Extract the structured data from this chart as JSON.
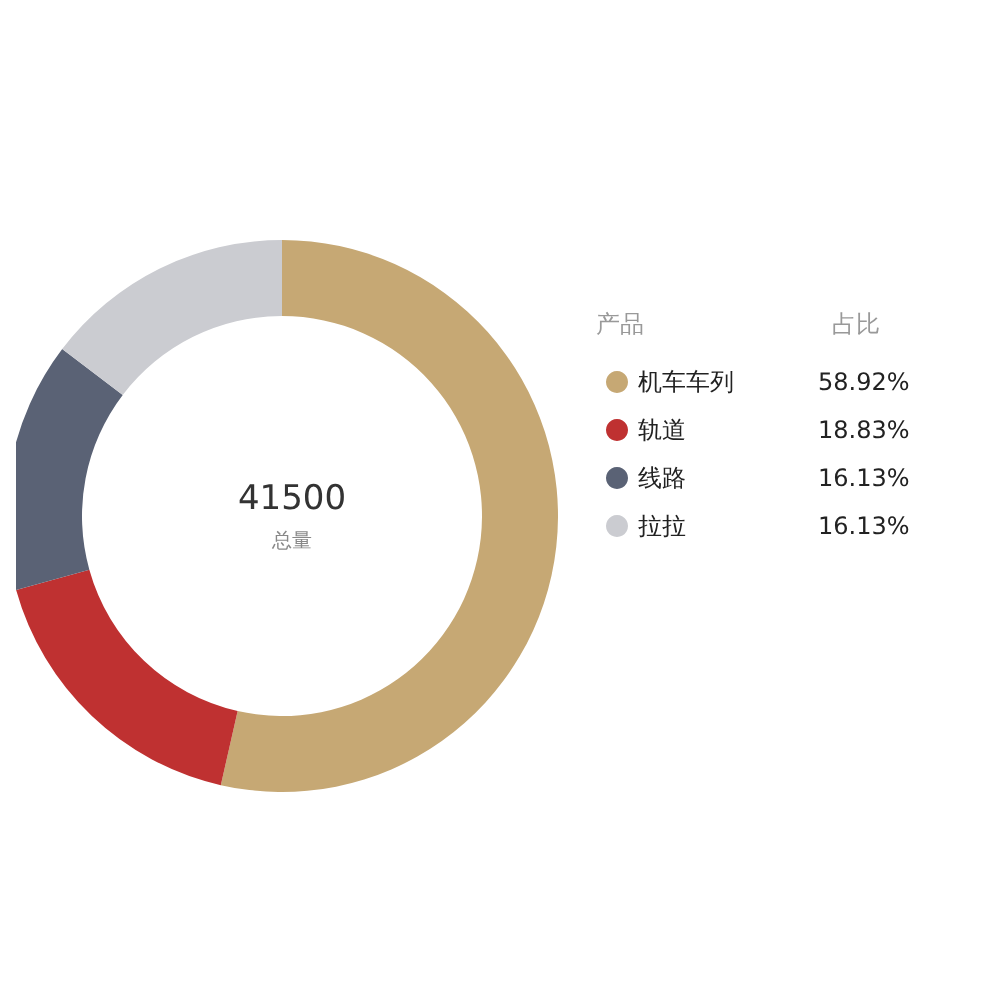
{
  "chart_data": {
    "type": "donut",
    "title": "41500",
    "subtitle": "总量",
    "legend_title": "产品",
    "annotations": [
      "占比"
    ],
    "categories": [
      "机车车列",
      "轨道",
      "线路",
      "拉拉"
    ],
    "values": [
      58.92,
      18.83,
      16.13,
      16.13
    ],
    "value_labels": [
      "58.92%",
      "18.83%",
      "16.13%",
      "16.13%"
    ],
    "colors": [
      "#c6a874",
      "#bf3131",
      "#5a6275",
      "#cbccd1"
    ],
    "legend": "right"
  }
}
